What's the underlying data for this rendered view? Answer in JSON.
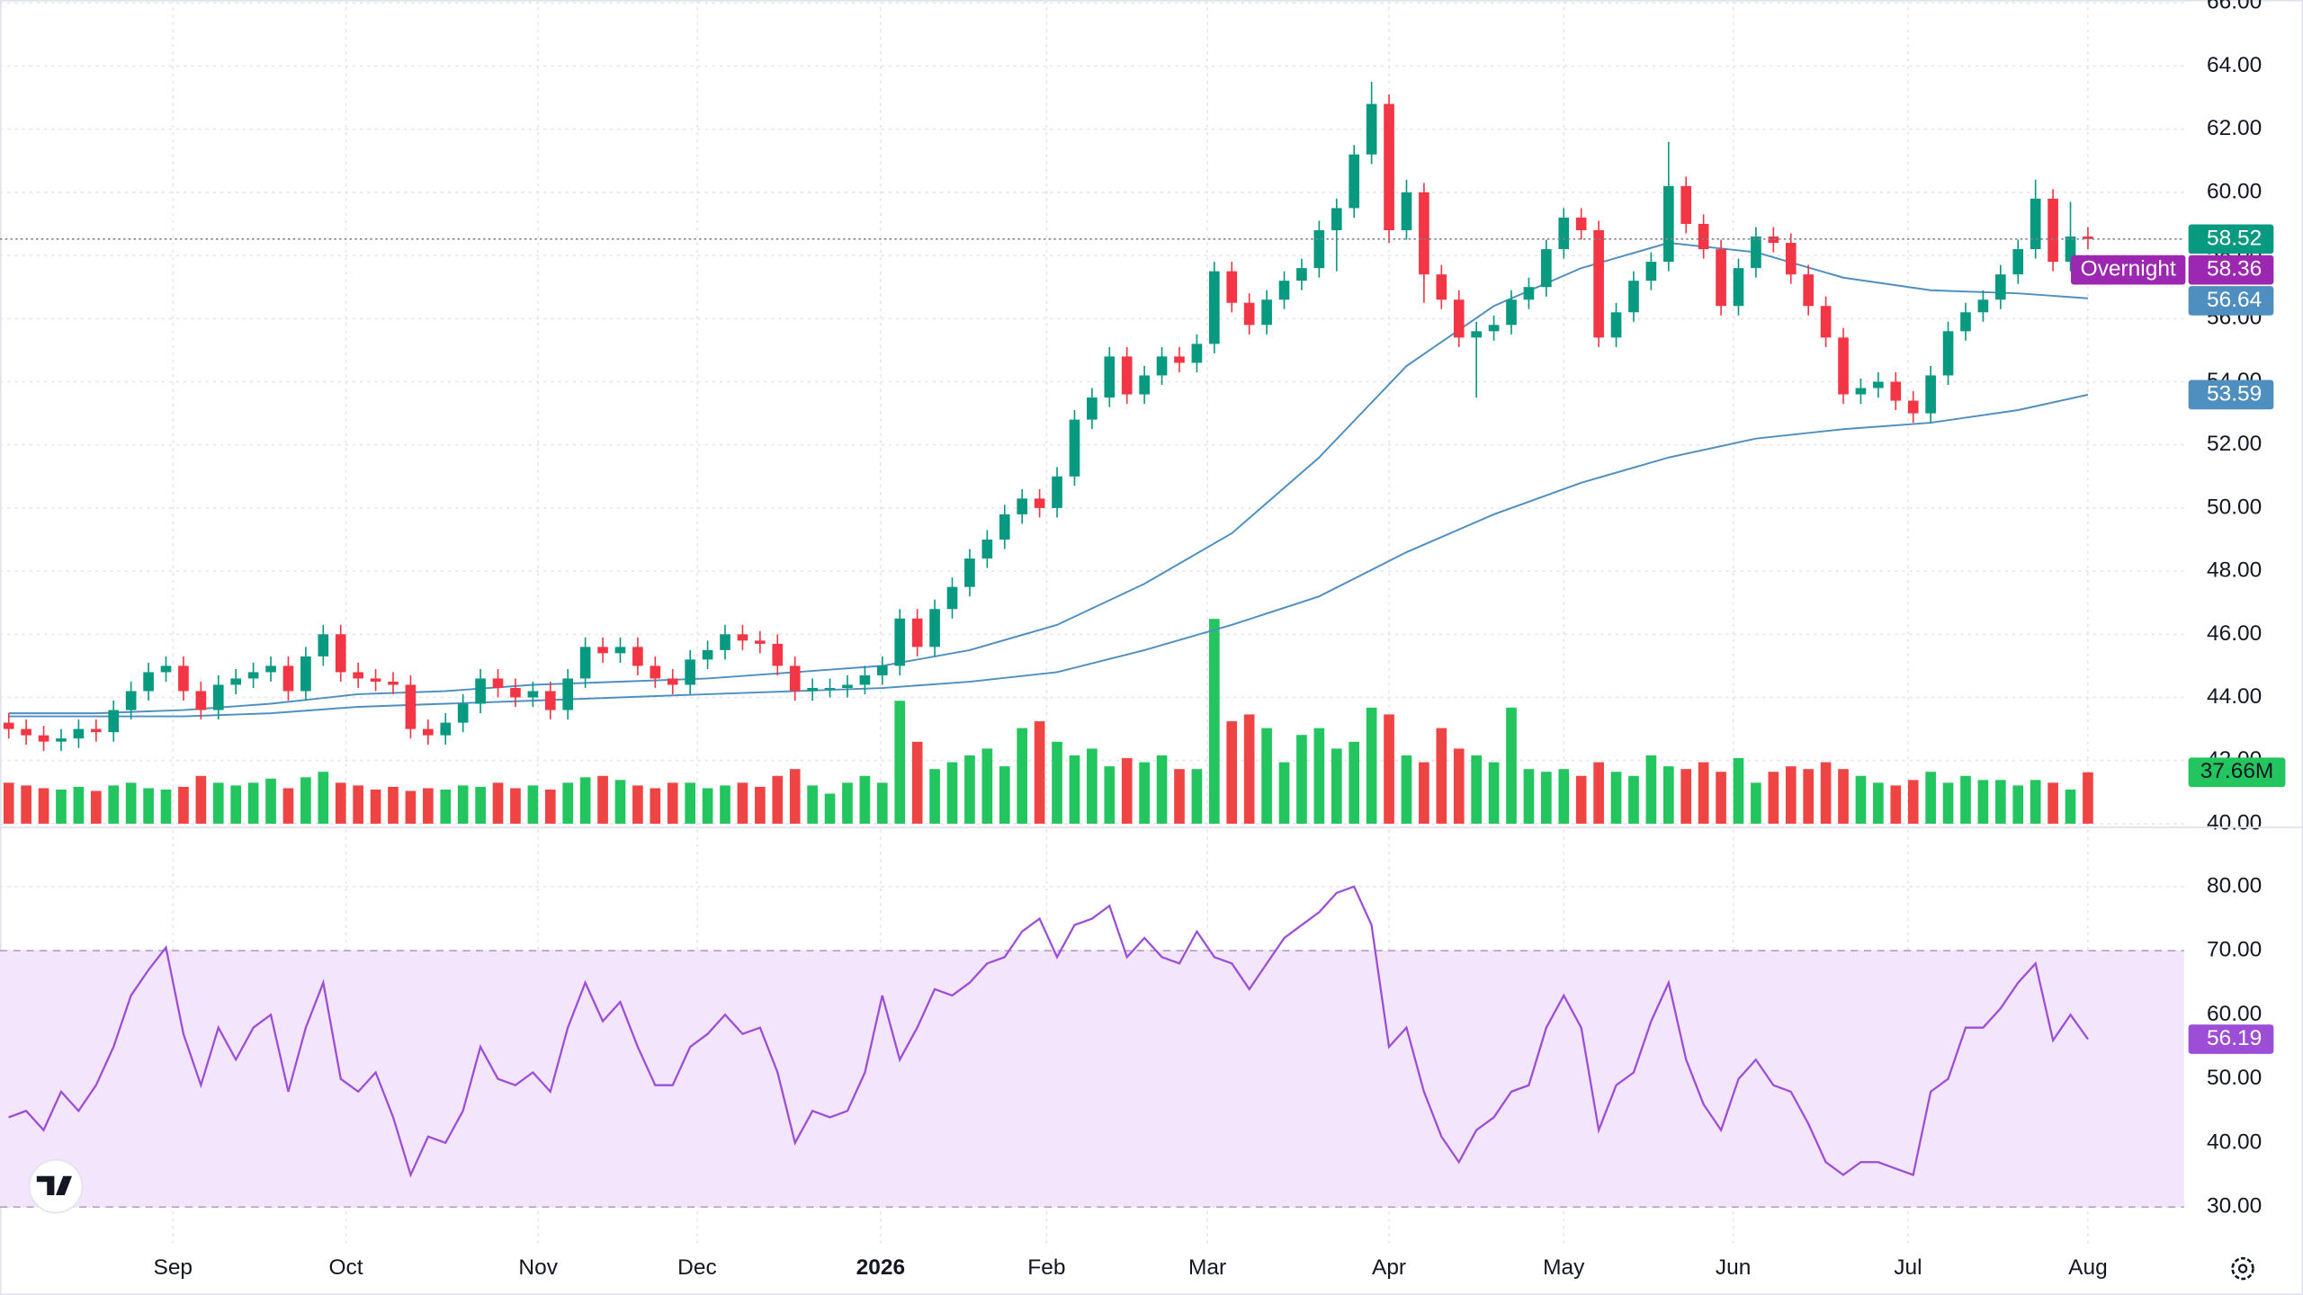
{
  "chart_data": {
    "type": "candlestick",
    "open": [
      43.2,
      43.0,
      42.8,
      42.6,
      42.7,
      43.0,
      42.9,
      43.6,
      44.2,
      44.8,
      45.0,
      44.2,
      43.6,
      44.4,
      44.6,
      44.8,
      45.0,
      44.2,
      45.3,
      46.0,
      44.8,
      44.6,
      44.5,
      44.4,
      43.0,
      42.8,
      43.2,
      43.8,
      44.6,
      44.3,
      44.0,
      44.2,
      43.6,
      44.6,
      45.6,
      45.4,
      45.6,
      45.0,
      44.6,
      44.4,
      45.2,
      45.5,
      46.0,
      45.8,
      45.7,
      45.0,
      44.2,
      44.3,
      44.3,
      44.4,
      44.7,
      45.0,
      46.5,
      45.6,
      46.8,
      47.5,
      48.4,
      49.0,
      49.8,
      50.3,
      50.0,
      51.0,
      52.8,
      53.5,
      54.8,
      53.6,
      54.2,
      54.8,
      54.6,
      55.2,
      57.5,
      56.5,
      55.8,
      56.6,
      57.2,
      57.6,
      58.8,
      59.5,
      61.2,
      62.8,
      58.8,
      60.0,
      57.4,
      56.6,
      55.4,
      55.6,
      55.8,
      56.6,
      57.0,
      58.2,
      59.2,
      58.8,
      55.4,
      56.2,
      57.2,
      57.8,
      60.2,
      59.0,
      58.2,
      56.4,
      57.6,
      58.6,
      58.4,
      57.4,
      56.4,
      55.4,
      53.6,
      53.8,
      54.0,
      53.4,
      53.0,
      54.2,
      55.6,
      56.2,
      56.6,
      57.4,
      58.2,
      59.8,
      57.8,
      58.6
    ],
    "high": [
      43.5,
      43.3,
      43.1,
      43.0,
      43.3,
      43.3,
      43.9,
      44.5,
      45.1,
      45.3,
      45.3,
      44.5,
      44.7,
      44.9,
      45.1,
      45.3,
      45.3,
      45.6,
      46.3,
      46.3,
      45.1,
      44.9,
      44.8,
      44.7,
      43.3,
      43.5,
      44.1,
      44.9,
      44.9,
      44.6,
      44.5,
      44.5,
      44.9,
      45.9,
      45.9,
      45.9,
      45.9,
      45.3,
      44.9,
      45.5,
      45.8,
      46.3,
      46.3,
      46.1,
      46.0,
      45.3,
      44.6,
      44.6,
      44.7,
      45.0,
      45.3,
      46.8,
      46.8,
      47.1,
      47.8,
      48.7,
      49.3,
      50.1,
      50.6,
      50.6,
      51.3,
      53.1,
      53.8,
      55.1,
      55.1,
      54.5,
      55.1,
      55.1,
      55.5,
      57.8,
      57.8,
      56.8,
      56.9,
      57.5,
      57.9,
      59.1,
      59.8,
      61.5,
      63.5,
      63.1,
      60.4,
      60.3,
      57.7,
      56.9,
      55.9,
      56.1,
      56.9,
      57.3,
      58.5,
      59.5,
      59.5,
      59.1,
      56.5,
      57.5,
      58.1,
      61.6,
      60.5,
      59.3,
      58.5,
      57.9,
      58.9,
      58.9,
      58.7,
      57.7,
      56.7,
      55.7,
      54.1,
      54.3,
      54.3,
      53.7,
      54.5,
      55.9,
      56.5,
      56.9,
      57.7,
      58.5,
      60.4,
      60.1,
      59.7,
      58.9
    ],
    "low": [
      42.7,
      42.5,
      42.3,
      42.3,
      42.4,
      42.6,
      42.6,
      43.3,
      43.9,
      44.5,
      43.9,
      43.3,
      43.3,
      44.1,
      44.3,
      44.5,
      43.9,
      43.9,
      45.0,
      44.5,
      44.3,
      44.2,
      44.1,
      42.7,
      42.5,
      42.5,
      42.9,
      43.5,
      44.0,
      43.7,
      43.7,
      43.3,
      43.3,
      44.3,
      45.1,
      45.1,
      44.7,
      44.3,
      44.1,
      44.1,
      44.9,
      45.2,
      45.5,
      45.4,
      44.7,
      43.9,
      43.9,
      44.0,
      44.0,
      44.1,
      44.4,
      44.7,
      45.3,
      45.3,
      46.5,
      47.2,
      48.1,
      48.7,
      49.5,
      49.7,
      49.7,
      50.7,
      52.5,
      53.2,
      53.3,
      53.3,
      53.9,
      54.3,
      54.3,
      54.9,
      56.2,
      55.5,
      55.5,
      56.3,
      56.9,
      57.3,
      57.5,
      59.2,
      60.9,
      58.4,
      58.5,
      56.5,
      56.3,
      55.1,
      53.5,
      55.3,
      55.5,
      56.3,
      56.7,
      57.9,
      58.5,
      55.1,
      55.1,
      55.9,
      56.9,
      57.5,
      58.7,
      57.9,
      56.1,
      56.1,
      57.3,
      58.1,
      57.1,
      56.1,
      55.1,
      53.3,
      53.3,
      53.5,
      53.1,
      52.7,
      52.7,
      53.9,
      55.3,
      55.9,
      56.3,
      57.1,
      57.9,
      57.5,
      57.5,
      58.2
    ],
    "close": [
      43.0,
      42.8,
      42.6,
      42.7,
      43.0,
      42.9,
      43.6,
      44.2,
      44.8,
      45.0,
      44.2,
      43.6,
      44.4,
      44.6,
      44.8,
      45.0,
      44.2,
      45.3,
      46.0,
      44.8,
      44.6,
      44.5,
      44.4,
      43.0,
      42.8,
      43.2,
      43.8,
      44.6,
      44.3,
      44.0,
      44.2,
      43.6,
      44.6,
      45.6,
      45.4,
      45.6,
      45.0,
      44.6,
      44.4,
      45.2,
      45.5,
      46.0,
      45.8,
      45.7,
      45.0,
      44.2,
      44.3,
      44.3,
      44.4,
      44.7,
      45.0,
      46.5,
      45.6,
      46.8,
      47.5,
      48.4,
      49.0,
      49.8,
      50.3,
      50.0,
      51.0,
      52.8,
      53.5,
      54.8,
      53.6,
      54.2,
      54.8,
      54.6,
      55.2,
      57.5,
      56.5,
      55.8,
      56.6,
      57.2,
      57.6,
      58.8,
      59.5,
      61.2,
      62.8,
      58.8,
      60.0,
      57.4,
      56.6,
      55.4,
      55.6,
      55.8,
      56.6,
      57.0,
      58.2,
      59.2,
      58.8,
      55.4,
      56.2,
      57.2,
      57.8,
      60.2,
      59.0,
      58.2,
      56.4,
      57.6,
      58.6,
      58.4,
      57.4,
      56.4,
      55.4,
      53.6,
      53.8,
      54.0,
      53.4,
      53.0,
      54.2,
      55.6,
      56.2,
      56.6,
      57.4,
      58.2,
      59.8,
      57.8,
      58.6,
      58.52
    ],
    "up_color": "#089981",
    "down_color": "#f23645",
    "xlim": [
      -0.5,
      124.5
    ],
    "xticks": [
      {
        "value": 9.4,
        "label": "Sep"
      },
      {
        "value": 19.3,
        "label": "Oct"
      },
      {
        "value": 30.3,
        "label": "Nov"
      },
      {
        "value": 39.4,
        "label": "Dec"
      },
      {
        "value": 49.9,
        "label": "2026"
      },
      {
        "value": 59.4,
        "label": "Feb"
      },
      {
        "value": 68.6,
        "label": "Mar"
      },
      {
        "value": 79,
        "label": "Apr"
      },
      {
        "value": 89,
        "label": "May"
      },
      {
        "value": 98.7,
        "label": "Jun"
      },
      {
        "value": 108.7,
        "label": "Jul"
      },
      {
        "value": 119,
        "label": "Aug"
      }
    ],
    "ylim": [
      40,
      66
    ],
    "yticks": [
      {
        "value": 40,
        "label": "40.00"
      },
      {
        "value": 42,
        "label": "42.00"
      },
      {
        "value": 44,
        "label": "44.00"
      },
      {
        "value": 46,
        "label": "46.00"
      },
      {
        "value": 48,
        "label": "48.00"
      },
      {
        "value": 50,
        "label": "50.00"
      },
      {
        "value": 52,
        "label": "52.00"
      },
      {
        "value": 54,
        "label": "54.00"
      },
      {
        "value": 56,
        "label": "56.00"
      },
      {
        "value": 58,
        "label": "58.00"
      },
      {
        "value": 60,
        "label": "60.00"
      },
      {
        "value": 62,
        "label": "62.00"
      },
      {
        "value": 64,
        "label": "64.00"
      },
      {
        "value": 66,
        "label": "66.00"
      }
    ],
    "grid": true,
    "overnight": {
      "label": "Overnight",
      "value": 58.36,
      "color": "#9c27b0"
    },
    "ma": [
      {
        "x": [
          0,
          5,
          10,
          15,
          20,
          25,
          30,
          35,
          40,
          45,
          50,
          55,
          60,
          65,
          70,
          75,
          80,
          85,
          90,
          95,
          100,
          105,
          110,
          115,
          119
        ],
        "values": [
          43.5,
          43.5,
          43.6,
          43.8,
          44.1,
          44.2,
          44.4,
          44.5,
          44.6,
          44.8,
          45.0,
          45.5,
          46.3,
          47.6,
          49.2,
          51.6,
          54.5,
          56.4,
          57.6,
          58.4,
          58.1,
          57.3,
          56.9,
          56.8,
          56.64
        ],
        "color": "#4f8fc0"
      },
      {
        "x": [
          0,
          5,
          10,
          15,
          20,
          25,
          30,
          35,
          40,
          45,
          50,
          55,
          60,
          65,
          70,
          75,
          80,
          85,
          90,
          95,
          100,
          105,
          110,
          115,
          119
        ],
        "values": [
          43.4,
          43.4,
          43.4,
          43.5,
          43.7,
          43.8,
          43.9,
          44.0,
          44.1,
          44.2,
          44.3,
          44.5,
          44.8,
          45.5,
          46.3,
          47.2,
          48.6,
          49.8,
          50.8,
          51.6,
          52.2,
          52.5,
          52.7,
          53.1,
          53.59
        ],
        "color": "#4f8fc0"
      }
    ],
    "volume": {
      "values": [
        30,
        28,
        26,
        25,
        27,
        24,
        28,
        30,
        26,
        25,
        27,
        35,
        30,
        28,
        30,
        33,
        26,
        34,
        38,
        30,
        28,
        25,
        27,
        24,
        26,
        25,
        28,
        27,
        30,
        26,
        28,
        25,
        30,
        34,
        35,
        32,
        28,
        26,
        30,
        30,
        26,
        28,
        30,
        27,
        35,
        40,
        28,
        22,
        30,
        35,
        30,
        90,
        60,
        40,
        45,
        50,
        55,
        42,
        70,
        75,
        60,
        50,
        55,
        42,
        48,
        45,
        50,
        40,
        40,
        150,
        75,
        80,
        70,
        45,
        65,
        70,
        55,
        60,
        85,
        80,
        50,
        45,
        70,
        55,
        50,
        45,
        85,
        40,
        38,
        40,
        35,
        45,
        38,
        35,
        50,
        42,
        40,
        45,
        38,
        48,
        30,
        38,
        42,
        40,
        45,
        40,
        35,
        30,
        28,
        32,
        38,
        30,
        35,
        32,
        32,
        28,
        32,
        30,
        25,
        37.66
      ],
      "last_label": "37.66M",
      "up_color": "#22c55e",
      "down_color": "#ef4444"
    },
    "rsi": {
      "values": [
        44,
        45,
        42,
        48,
        45,
        49,
        55,
        63,
        67,
        70.5,
        57,
        49,
        58,
        53,
        58,
        60,
        48,
        58,
        65,
        50,
        48,
        51,
        44,
        35,
        41,
        40,
        45,
        55,
        50,
        49,
        51,
        48,
        58,
        65,
        59,
        62,
        55,
        49,
        49,
        55,
        57,
        60,
        57,
        58,
        51,
        40,
        45,
        44,
        45,
        51,
        63,
        53,
        58,
        64,
        63,
        65,
        68,
        69,
        73,
        75,
        69,
        74,
        75,
        77,
        69,
        72,
        69,
        68,
        73,
        69,
        68,
        64,
        68,
        72,
        74,
        76,
        79,
        80,
        74,
        55,
        58,
        48,
        41,
        37,
        42,
        44,
        48,
        49,
        58,
        63,
        58,
        42,
        49,
        51,
        59,
        65,
        53,
        46,
        42,
        50,
        53,
        49,
        48,
        43,
        37,
        35,
        37,
        37,
        36,
        35,
        48,
        50,
        58,
        58,
        61,
        65,
        68,
        56,
        60,
        56.19
      ],
      "color": "#9c4fd6",
      "ylim": [
        23.6,
        88.9
      ],
      "yticks": [
        {
          "value": 30,
          "label": "30.00"
        },
        {
          "value": 40,
          "label": "40.00"
        },
        {
          "value": 50,
          "label": "50.00"
        },
        {
          "value": 60,
          "label": "60.00"
        },
        {
          "value": 70,
          "label": "70.00"
        },
        {
          "value": 80,
          "label": "80.00"
        }
      ],
      "band": [
        30,
        70
      ],
      "band_color": "#f3e5fc"
    }
  }
}
